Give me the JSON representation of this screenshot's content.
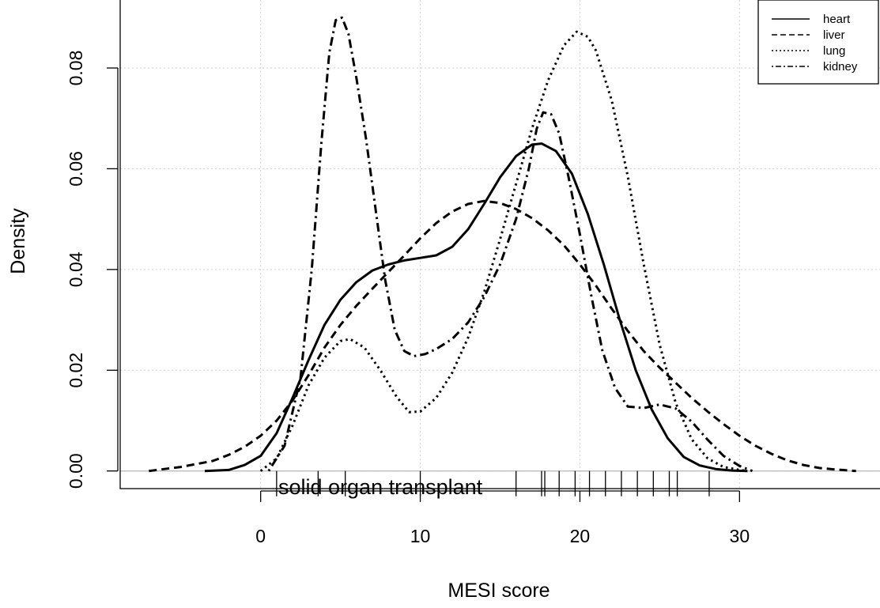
{
  "chart_data": {
    "type": "line",
    "title": "",
    "xlabel": "MESI score",
    "ylabel": "Density",
    "xlim": [
      -8.8,
      38.8
    ],
    "ylim": [
      -0.0035,
      0.0935
    ],
    "x_ticks": [
      0,
      10,
      20,
      30
    ],
    "x_tick_labels": [
      "0",
      "10",
      "20",
      "30"
    ],
    "y_ticks": [
      0.0,
      0.02,
      0.04,
      0.06,
      0.08
    ],
    "y_tick_labels": [
      "0.00",
      "0.02",
      "0.04",
      "0.06",
      "0.08"
    ],
    "grid": true,
    "legend_position": "top-right",
    "overlay_text": "solid organ transplant",
    "series": [
      {
        "name": "heart",
        "line_style": "solid",
        "color": "#000000",
        "points": [
          [
            -3.5,
            0.0
          ],
          [
            -2,
            0.0002
          ],
          [
            -1,
            0.0012
          ],
          [
            0,
            0.003
          ],
          [
            1,
            0.0075
          ],
          [
            2,
            0.0145
          ],
          [
            3,
            0.022
          ],
          [
            4,
            0.029
          ],
          [
            5,
            0.034
          ],
          [
            6,
            0.0375
          ],
          [
            7,
            0.0398
          ],
          [
            8,
            0.041
          ],
          [
            9,
            0.0418
          ],
          [
            10,
            0.0423
          ],
          [
            11,
            0.0428
          ],
          [
            12,
            0.0445
          ],
          [
            13,
            0.048
          ],
          [
            14,
            0.053
          ],
          [
            15,
            0.0583
          ],
          [
            16,
            0.0625
          ],
          [
            17,
            0.0648
          ],
          [
            17.6,
            0.065
          ],
          [
            18.5,
            0.0635
          ],
          [
            19.5,
            0.059
          ],
          [
            20.5,
            0.051
          ],
          [
            21.5,
            0.041
          ],
          [
            22.5,
            0.03
          ],
          [
            23.5,
            0.02
          ],
          [
            24.5,
            0.0122
          ],
          [
            25.5,
            0.0065
          ],
          [
            26.5,
            0.0028
          ],
          [
            27.5,
            0.0011
          ],
          [
            28.5,
            0.0004
          ],
          [
            29.5,
            0.0001
          ],
          [
            30.5,
            0.0
          ]
        ]
      },
      {
        "name": "liver",
        "line_style": "dashed",
        "color": "#000000",
        "points": [
          [
            -7,
            0.0
          ],
          [
            -5,
            0.0008
          ],
          [
            -3,
            0.002
          ],
          [
            -2,
            0.0032
          ],
          [
            -1,
            0.0048
          ],
          [
            0,
            0.007
          ],
          [
            1,
            0.01
          ],
          [
            2,
            0.014
          ],
          [
            3,
            0.019
          ],
          [
            4,
            0.0245
          ],
          [
            5,
            0.029
          ],
          [
            6,
            0.0328
          ],
          [
            7,
            0.0362
          ],
          [
            8,
            0.0395
          ],
          [
            9,
            0.0428
          ],
          [
            10,
            0.0462
          ],
          [
            11,
            0.0492
          ],
          [
            12,
            0.0515
          ],
          [
            13,
            0.053
          ],
          [
            14,
            0.0536
          ],
          [
            15,
            0.0532
          ],
          [
            16,
            0.052
          ],
          [
            17,
            0.0502
          ],
          [
            18,
            0.0478
          ],
          [
            19,
            0.0448
          ],
          [
            20,
            0.041
          ],
          [
            21,
            0.0368
          ],
          [
            22,
            0.0322
          ],
          [
            23,
            0.0278
          ],
          [
            24,
            0.0238
          ],
          [
            25,
            0.0205
          ],
          [
            26,
            0.0175
          ],
          [
            27,
            0.0145
          ],
          [
            28,
            0.0118
          ],
          [
            29,
            0.0093
          ],
          [
            30,
            0.007
          ],
          [
            31,
            0.005
          ],
          [
            32,
            0.0034
          ],
          [
            33,
            0.0021
          ],
          [
            34,
            0.0012
          ],
          [
            35,
            0.0006
          ],
          [
            36,
            0.0003
          ],
          [
            37.3,
            0.0
          ]
        ]
      },
      {
        "name": "lung",
        "line_style": "dotted",
        "color": "#000000",
        "points": [
          [
            0,
            0.0
          ],
          [
            1,
            0.0025
          ],
          [
            2,
            0.009
          ],
          [
            3,
            0.017
          ],
          [
            4,
            0.0225
          ],
          [
            5,
            0.0258
          ],
          [
            5.6,
            0.0262
          ],
          [
            6.5,
            0.0245
          ],
          [
            7.5,
            0.02
          ],
          [
            8.5,
            0.0148
          ],
          [
            9.3,
            0.0117
          ],
          [
            10,
            0.0118
          ],
          [
            11,
            0.0145
          ],
          [
            12,
            0.0195
          ],
          [
            13,
            0.0265
          ],
          [
            14,
            0.0355
          ],
          [
            15,
            0.046
          ],
          [
            16,
            0.057
          ],
          [
            17,
            0.068
          ],
          [
            18,
            0.0775
          ],
          [
            19,
            0.0845
          ],
          [
            19.8,
            0.0872
          ],
          [
            20.5,
            0.0862
          ],
          [
            21,
            0.0835
          ],
          [
            22,
            0.0735
          ],
          [
            23,
            0.0585
          ],
          [
            24,
            0.041
          ],
          [
            25,
            0.025
          ],
          [
            26,
            0.0135
          ],
          [
            27,
            0.0063
          ],
          [
            28,
            0.0025
          ],
          [
            29,
            0.0008
          ],
          [
            30,
            0.0002
          ],
          [
            30.5,
            0.0
          ]
        ]
      },
      {
        "name": "kidney",
        "line_style": "dotdash",
        "color": "#000000",
        "points": [
          [
            0.5,
            0.0
          ],
          [
            1.5,
            0.005
          ],
          [
            2.5,
            0.0185
          ],
          [
            3.2,
            0.04
          ],
          [
            3.8,
            0.065
          ],
          [
            4.3,
            0.083
          ],
          [
            4.7,
            0.0895
          ],
          [
            5.1,
            0.09
          ],
          [
            5.5,
            0.0868
          ],
          [
            6,
            0.078
          ],
          [
            6.6,
            0.066
          ],
          [
            7.2,
            0.052
          ],
          [
            7.8,
            0.038
          ],
          [
            8.4,
            0.028
          ],
          [
            9,
            0.0238
          ],
          [
            9.6,
            0.0228
          ],
          [
            10.3,
            0.0232
          ],
          [
            11,
            0.0242
          ],
          [
            12,
            0.0262
          ],
          [
            13,
            0.0295
          ],
          [
            14,
            0.0345
          ],
          [
            15,
            0.041
          ],
          [
            16,
            0.05
          ],
          [
            16.8,
            0.06
          ],
          [
            17.3,
            0.068
          ],
          [
            17.7,
            0.0712
          ],
          [
            18.2,
            0.0708
          ],
          [
            18.7,
            0.067
          ],
          [
            19.3,
            0.0582
          ],
          [
            20,
            0.047
          ],
          [
            20.7,
            0.035
          ],
          [
            21.4,
            0.024
          ],
          [
            22.2,
            0.0165
          ],
          [
            23,
            0.0128
          ],
          [
            24,
            0.0125
          ],
          [
            25,
            0.0132
          ],
          [
            26,
            0.0124
          ],
          [
            27,
            0.0098
          ],
          [
            28,
            0.0062
          ],
          [
            29,
            0.003
          ],
          [
            30,
            0.001
          ],
          [
            30.8,
            0.0
          ]
        ]
      }
    ],
    "rug_x": [
      1.0,
      3.6,
      5.3,
      10.0,
      16.0,
      17.6,
      17.8,
      18.7,
      19.7,
      20.6,
      21.6,
      22.6,
      23.6,
      24.6,
      25.6,
      26.1,
      28.1
    ]
  }
}
